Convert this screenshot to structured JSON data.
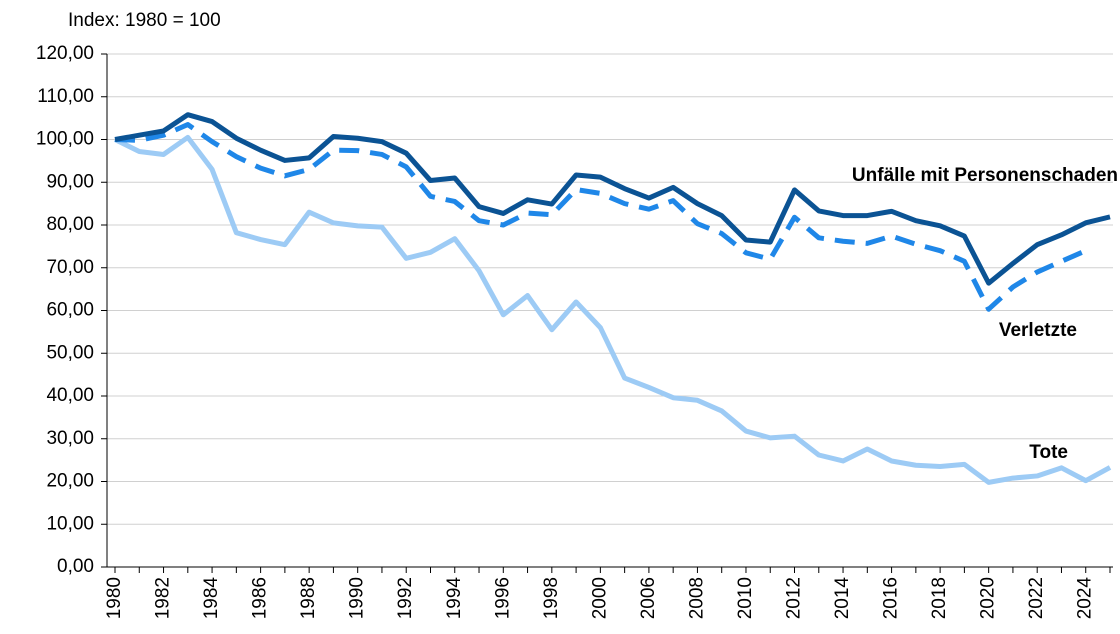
{
  "chart_data": {
    "type": "line",
    "y_label": "Index: 1980 = 100",
    "categories": [
      "1980",
      null,
      "1982",
      null,
      "1984",
      null,
      "1986",
      null,
      "1988",
      null,
      "1990",
      null,
      "1992",
      null,
      "1994",
      null,
      "1996",
      null,
      "1998",
      null,
      "2000",
      null,
      "2006",
      null,
      "2008",
      null,
      "2010",
      null,
      "2012",
      null,
      "2014",
      null,
      "2016",
      null,
      "2018",
      null,
      "2020",
      null,
      "2022",
      null,
      "2024",
      null
    ],
    "series": [
      {
        "name": "Unfälle mit Personenschaden",
        "color": "#0b5394",
        "dashed": false,
        "values": [
          100,
          101,
          102,
          105.8,
          104.2,
          100.3,
          97.5,
          95.1,
          95.7,
          100.7,
          100.3,
          99.5,
          96.8,
          90.4,
          91,
          84.3,
          82.7,
          85.9,
          84.9,
          91.7,
          91.2,
          88.5,
          86.3,
          88.8,
          85,
          82.2,
          76.5,
          76,
          88.2,
          83.3,
          82.2,
          82.2,
          83.2,
          81,
          79.8,
          77.4,
          66.4,
          71,
          75.4,
          77.7,
          80.5,
          81.9
        ]
      },
      {
        "name": "Verletzte",
        "color": "#1f87e8",
        "dashed": true,
        "values": [
          100,
          99.8,
          101,
          103.5,
          99.5,
          96,
          93.3,
          91.5,
          93,
          97.5,
          97.4,
          96.5,
          93.6,
          86.7,
          85.5,
          81,
          80,
          82.8,
          82.4,
          88.3,
          87.4,
          85,
          83.7,
          85.7,
          80.3,
          78,
          73.5,
          72,
          81.8,
          77,
          76.2,
          75.7,
          77.4,
          75.5,
          74,
          71.5,
          60.3,
          65.5,
          69,
          71.5,
          74,
          null
        ]
      },
      {
        "name": "Tote",
        "color": "#9dcbf5",
        "dashed": false,
        "values": [
          100,
          97.2,
          96.5,
          100.5,
          93,
          78.2,
          76.6,
          75.4,
          83,
          80.5,
          79.8,
          79.5,
          72.2,
          73.6,
          76.8,
          69.3,
          59,
          63.5,
          55.5,
          62,
          56,
          44.2,
          42,
          39.6,
          39,
          36.5,
          31.8,
          30.2,
          30.6,
          26.2,
          24.8,
          27.6,
          24.8,
          23.8,
          23.5,
          24,
          19.8,
          20.8,
          21.3,
          23.2,
          20.2,
          23.3
        ]
      }
    ],
    "ylim": [
      0,
      120
    ],
    "yticks": [
      {
        "value": 0,
        "label": "0,00"
      },
      {
        "value": 10,
        "label": "10,00"
      },
      {
        "value": 20,
        "label": "20,00"
      },
      {
        "value": 30,
        "label": "30,00"
      },
      {
        "value": 40,
        "label": "40,00"
      },
      {
        "value": 50,
        "label": "50,00"
      },
      {
        "value": 60,
        "label": "60,00"
      },
      {
        "value": 70,
        "label": "70,00"
      },
      {
        "value": 80,
        "label": "80,00"
      },
      {
        "value": 90,
        "label": "90,00"
      },
      {
        "value": 100,
        "label": "100,00"
      },
      {
        "value": 110,
        "label": "110,00"
      },
      {
        "value": 120,
        "label": "120,00"
      }
    ],
    "grid": true
  }
}
